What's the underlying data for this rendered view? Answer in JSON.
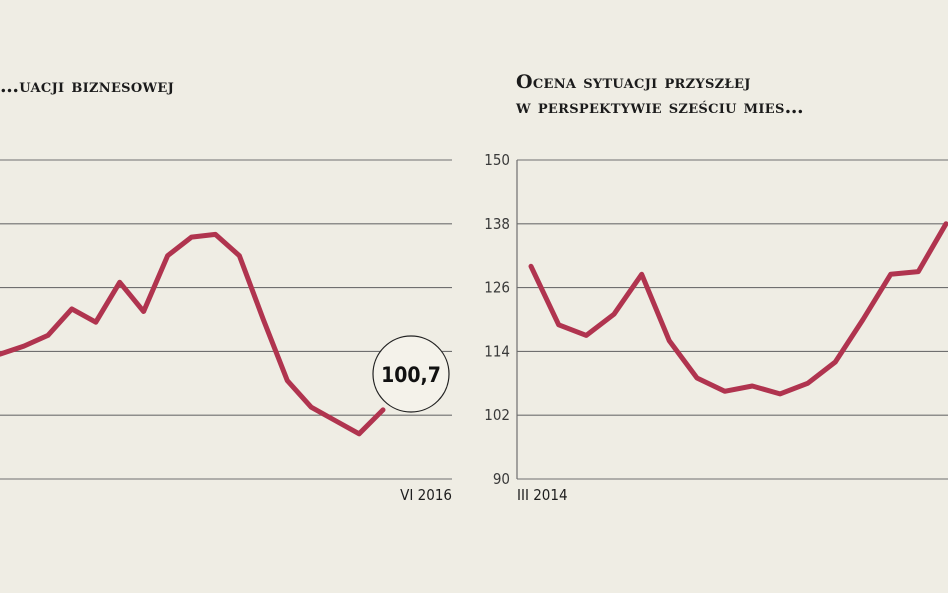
{
  "chart_data": [
    {
      "type": "line",
      "title": "…uacji biznesowej",
      "x_end_label": "VI 2016",
      "ylim": [
        90,
        150
      ],
      "grid": true,
      "color": "#b0344f",
      "callout": "100,7",
      "series": [
        {
          "values": [
            113.5,
            115,
            117,
            122,
            119.5,
            127,
            121.5,
            132,
            135.5,
            136,
            132,
            120,
            108.5,
            103.5,
            101,
            98.5,
            103
          ]
        }
      ]
    },
    {
      "type": "line",
      "title": "Ocena sytuacji przyszłej",
      "subtitle": "w perspektywie sześciu mies…",
      "x_start_label": "III 2014",
      "yticks": [
        150,
        138,
        126,
        114,
        102,
        90
      ],
      "ylim": [
        90,
        150
      ],
      "grid": true,
      "color": "#b0344f",
      "series": [
        {
          "values": [
            130,
            119,
            117,
            121,
            128.5,
            116,
            109,
            106.5,
            107.5,
            106,
            108,
            112,
            120,
            128.5,
            129,
            138
          ]
        }
      ]
    }
  ]
}
